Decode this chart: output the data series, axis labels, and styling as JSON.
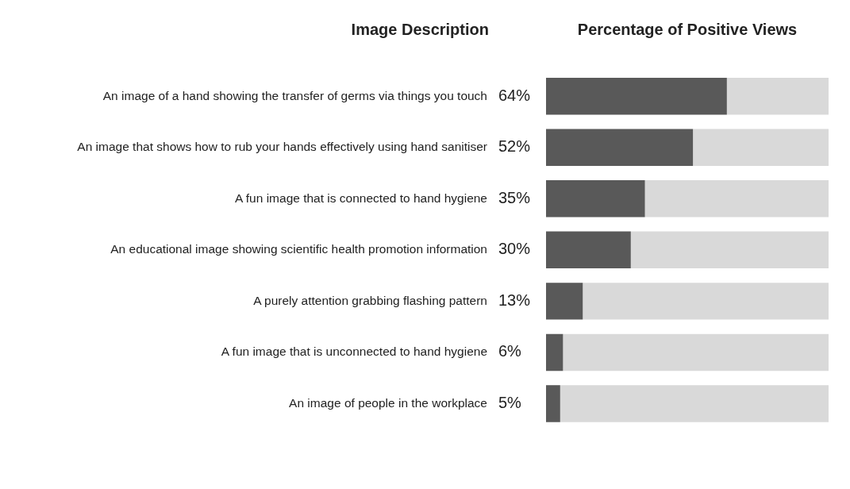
{
  "chart_data": {
    "type": "bar",
    "orientation": "horizontal",
    "stacked": true,
    "title": "Percentage of Positive Views",
    "ylabel": "Image Description",
    "categories": [
      "An image of a hand showing the transfer of germs via things you touch",
      "An image that shows how to rub your hands effectively using hand sanitiser",
      "A fun image that is connected to hand hygiene",
      "An educational image showing scientific health promotion information",
      "A purely attention grabbing flashing pattern",
      "A fun image that is unconnected to hand hygiene",
      "An image of people in the workplace"
    ],
    "series": [
      {
        "color": "#595959",
        "values": [
          64,
          52,
          35,
          30,
          13,
          6,
          5
        ],
        "value_labels": [
          "64%",
          "52%",
          "35%",
          "30%",
          "13%",
          "6%",
          "5%"
        ]
      },
      {
        "color": "#d9d9d9",
        "values": [
          36,
          48,
          65,
          70,
          87,
          94,
          95
        ]
      }
    ],
    "xlim": [
      0,
      100
    ],
    "tick_labels": "y",
    "legend": false
  }
}
